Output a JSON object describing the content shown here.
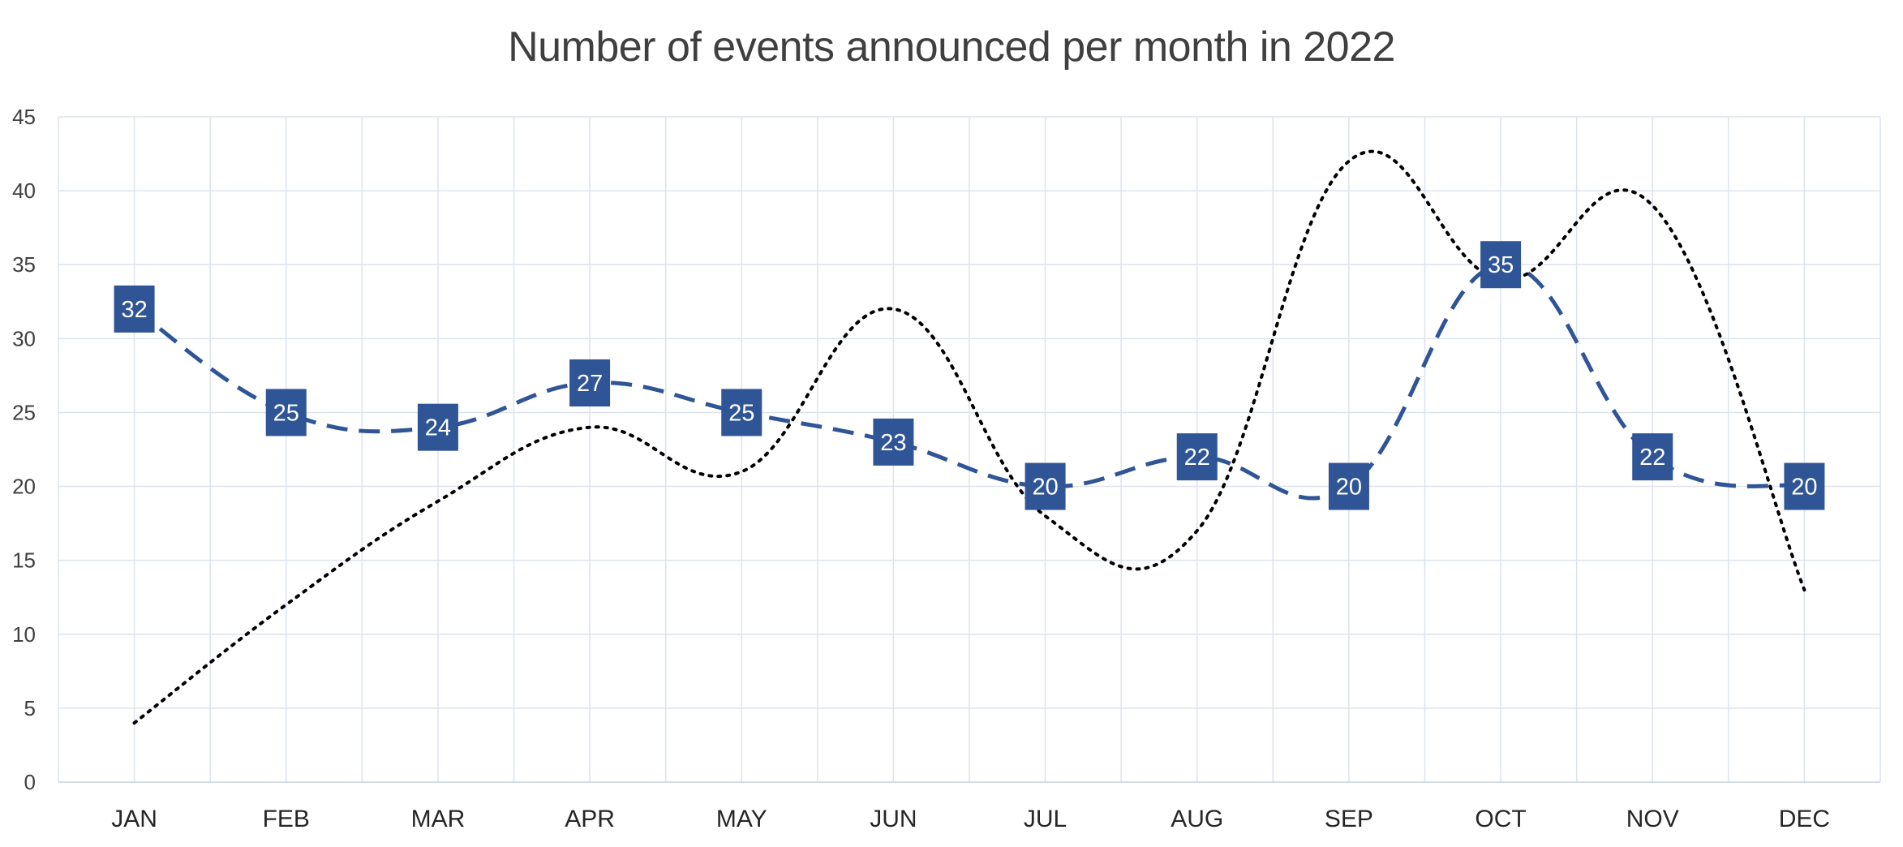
{
  "chart_data": {
    "type": "line",
    "title": "Number of events announced per month in 2022",
    "xlabel": "",
    "ylabel": "",
    "categories": [
      "JAN",
      "FEB",
      "MAR",
      "APR",
      "MAY",
      "JUN",
      "JUL",
      "AUG",
      "SEP",
      "OCT",
      "NOV",
      "DEC"
    ],
    "ylim": [
      0,
      45
    ],
    "yticks": [
      0,
      5,
      10,
      15,
      20,
      25,
      30,
      35,
      40,
      45
    ],
    "grid": true,
    "series": [
      {
        "style": "dashed",
        "color": "#2f5597",
        "smooth": true,
        "show_data_labels": true,
        "values": [
          32,
          25,
          24,
          27,
          25,
          23,
          20,
          22,
          20,
          35,
          22,
          20
        ]
      },
      {
        "style": "dotted",
        "color": "#000000",
        "smooth": true,
        "show_data_labels": false,
        "values": [
          4,
          12,
          19,
          24,
          21,
          32,
          18,
          17,
          42,
          34,
          39,
          13
        ]
      }
    ]
  }
}
